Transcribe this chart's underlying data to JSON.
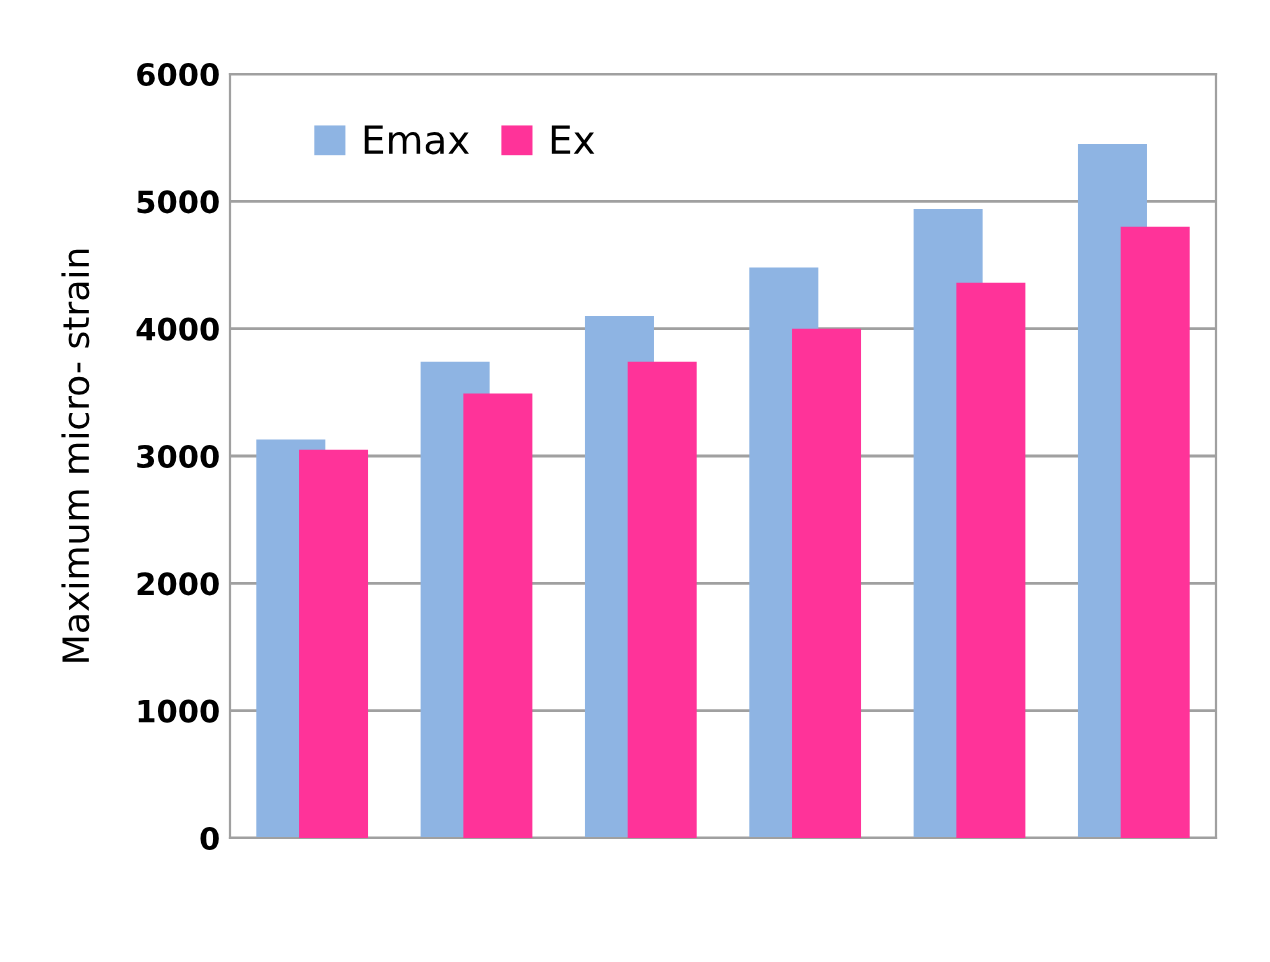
{
  "chart_data": {
    "type": "bar",
    "ylabel": "Maximum micro- strain",
    "categories": [
      null,
      null,
      null,
      null,
      null,
      null
    ],
    "series": [
      {
        "name": "Emax",
        "color": "#8eb4e3",
        "values": [
          3130,
          3740,
          4100,
          4480,
          4940,
          5450
        ]
      },
      {
        "name": "Ex",
        "color": "#ff3399",
        "values": [
          3050,
          3490,
          3740,
          4000,
          4360,
          4800
        ]
      }
    ],
    "ylim": [
      0,
      6000
    ],
    "yticks": [
      0,
      1000,
      2000,
      3000,
      4000,
      5000,
      6000
    ],
    "grid": "y",
    "legend": "top left"
  }
}
